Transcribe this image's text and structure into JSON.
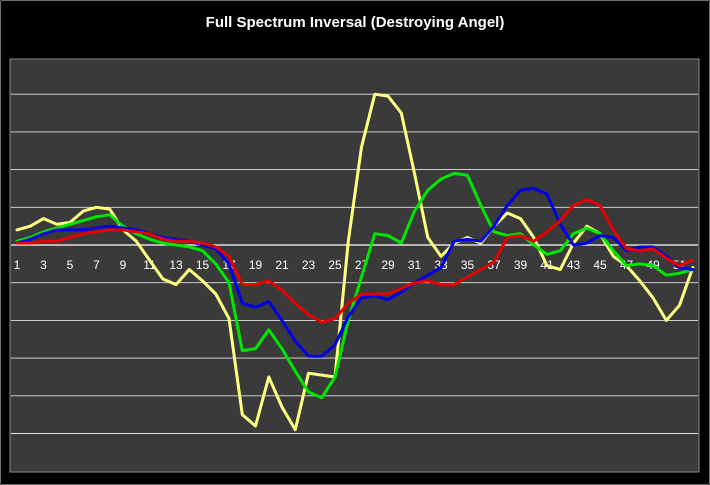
{
  "chart_data": {
    "type": "line",
    "title": "Full Spectrum Inversal (Destroying Angel)",
    "xlabel": "",
    "ylabel": "",
    "x": [
      1,
      2,
      3,
      4,
      5,
      6,
      7,
      8,
      9,
      10,
      11,
      12,
      13,
      14,
      15,
      16,
      17,
      18,
      19,
      20,
      21,
      22,
      23,
      24,
      25,
      26,
      27,
      28,
      29,
      30,
      31,
      32,
      33,
      34,
      35,
      36,
      37,
      38,
      39,
      40,
      41,
      42,
      43,
      44,
      45,
      46,
      47,
      48,
      49,
      50,
      51,
      52
    ],
    "x_tick_labels": [
      "1",
      "3",
      "5",
      "7",
      "9",
      "11",
      "13",
      "15",
      "17",
      "19",
      "21",
      "23",
      "25",
      "27",
      "29",
      "31",
      "33",
      "35",
      "37",
      "39",
      "41",
      "43",
      "45",
      "47",
      "49",
      "51"
    ],
    "ylim": [
      -5.25,
      5.0
    ],
    "grid": true,
    "legend": "none",
    "colors": {
      "background": "#000000",
      "plot_area": "#3a3a3a",
      "grid": "#ffffff",
      "yellow": "#ffff80",
      "green": "#00e600",
      "blue": "#0000e6",
      "red": "#e60000"
    },
    "series": [
      {
        "color": "#ffff80",
        "values": [
          0.4,
          0.5,
          0.7,
          0.55,
          0.6,
          0.9,
          1.0,
          0.95,
          0.4,
          0.1,
          -0.4,
          -0.9,
          -1.05,
          -0.65,
          -0.95,
          -1.3,
          -1.95,
          -4.5,
          -4.8,
          -3.5,
          -4.3,
          -4.9,
          -3.4,
          -3.45,
          -3.5,
          0.1,
          2.6,
          4.0,
          3.95,
          3.5,
          1.9,
          0.2,
          -0.3,
          0.05,
          0.2,
          0.05,
          0.5,
          0.85,
          0.7,
          0.2,
          -0.55,
          -0.65,
          0.05,
          0.5,
          0.3,
          -0.3,
          -0.55,
          -0.95,
          -1.4,
          -2.0,
          -1.6,
          -0.6
        ]
      },
      {
        "color": "#00e600",
        "values": [
          0.1,
          0.2,
          0.35,
          0.45,
          0.55,
          0.65,
          0.75,
          0.8,
          0.5,
          0.3,
          0.15,
          0.05,
          0.0,
          -0.05,
          -0.15,
          -0.5,
          -1.0,
          -2.8,
          -2.75,
          -2.25,
          -2.75,
          -3.35,
          -3.9,
          -4.05,
          -3.5,
          -2.0,
          -0.85,
          0.3,
          0.25,
          0.05,
          0.9,
          1.45,
          1.75,
          1.9,
          1.85,
          1.05,
          0.35,
          0.25,
          0.3,
          0.0,
          -0.25,
          -0.15,
          0.3,
          0.45,
          0.3,
          -0.15,
          -0.55,
          -0.5,
          -0.55,
          -0.8,
          -0.75,
          -0.65
        ]
      },
      {
        "color": "#0000e6",
        "values": [
          0.05,
          0.15,
          0.3,
          0.4,
          0.4,
          0.4,
          0.45,
          0.5,
          0.45,
          0.4,
          0.3,
          0.2,
          0.15,
          0.1,
          0.0,
          -0.1,
          -0.5,
          -1.55,
          -1.65,
          -1.5,
          -2.0,
          -2.55,
          -2.95,
          -2.95,
          -2.65,
          -1.9,
          -1.4,
          -1.35,
          -1.45,
          -1.25,
          -1.0,
          -0.8,
          -0.6,
          0.1,
          0.15,
          0.1,
          0.5,
          1.05,
          1.45,
          1.5,
          1.35,
          0.55,
          0.0,
          0.05,
          0.25,
          0.2,
          -0.15,
          -0.05,
          -0.05,
          -0.3,
          -0.6,
          -0.65
        ]
      },
      {
        "color": "#e60000",
        "values": [
          0.05,
          0.05,
          0.1,
          0.1,
          0.2,
          0.3,
          0.35,
          0.4,
          0.4,
          0.35,
          0.3,
          0.15,
          0.1,
          0.1,
          0.05,
          -0.05,
          -0.3,
          -1.05,
          -1.05,
          -0.95,
          -1.2,
          -1.55,
          -1.85,
          -2.05,
          -1.95,
          -1.55,
          -1.3,
          -1.3,
          -1.3,
          -1.15,
          -1.0,
          -0.95,
          -1.05,
          -1.05,
          -0.85,
          -0.65,
          -0.45,
          0.2,
          0.25,
          0.1,
          0.35,
          0.65,
          1.05,
          1.2,
          1.05,
          0.4,
          -0.1,
          -0.15,
          -0.1,
          -0.35,
          -0.55,
          -0.4
        ]
      }
    ]
  }
}
